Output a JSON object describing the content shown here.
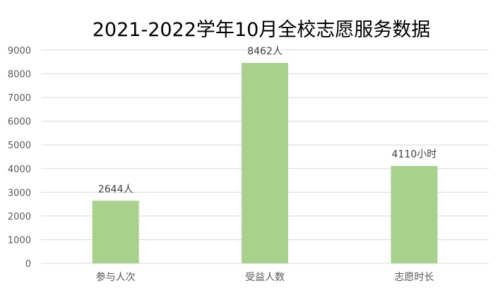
{
  "chart_data": {
    "type": "bar",
    "title": "2021-2022学年10月全校志愿服务数据",
    "xlabel": "",
    "ylabel": "",
    "categories": [
      "参与人次",
      "受益人数",
      "志愿时长"
    ],
    "values": [
      2644,
      8462,
      4110
    ],
    "data_labels": [
      "2644人",
      "8462人",
      "4110小时"
    ],
    "ylim": [
      0,
      9000
    ],
    "yticks": [
      0,
      1000,
      2000,
      3000,
      4000,
      5000,
      6000,
      7000,
      8000,
      9000
    ],
    "grid": true,
    "legend": "none",
    "bar_color": "#a9d18e",
    "grid_color": "#d9d9d9"
  }
}
